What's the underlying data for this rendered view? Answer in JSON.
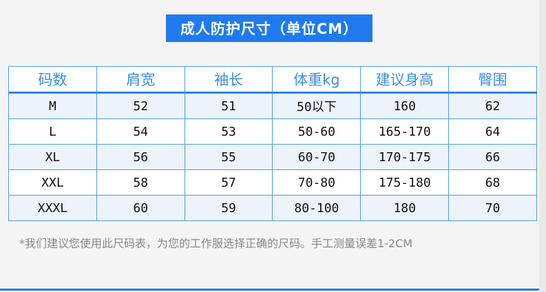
{
  "title": "成人防护尺寸（单位CM）",
  "table": {
    "headers": [
      "码数",
      "肩宽",
      "袖长",
      "体重kg",
      "建议身高",
      "臀围"
    ],
    "rows": [
      [
        "M",
        "52",
        "51",
        "50以下",
        "160",
        "62"
      ],
      [
        "L",
        "54",
        "53",
        "50-60",
        "165-170",
        "64"
      ],
      [
        "XL",
        "56",
        "55",
        "60-70",
        "170-175",
        "66"
      ],
      [
        "XXL",
        "58",
        "57",
        "70-80",
        "175-180",
        "68"
      ],
      [
        "XXXL",
        "60",
        "59",
        "80-100",
        "180",
        "70"
      ]
    ]
  },
  "note": "*我们建议您使用此尺码表，为您的工作服选择正确的尺码。手工测量误差1-2CM",
  "colors": {
    "accent": "#1f7af0",
    "header_text": "#3b8fde",
    "row_alt": "#edf3fa"
  }
}
